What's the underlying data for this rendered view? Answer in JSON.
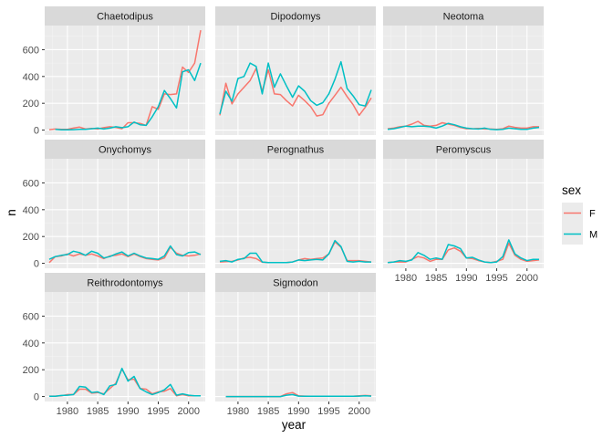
{
  "chart_data": {
    "type": "line",
    "xlabel": "year",
    "ylabel": "n",
    "xlim": [
      1976.25,
      2002.75
    ],
    "ylim": [
      -37,
      780
    ],
    "x_ticks": [
      1980,
      1985,
      1990,
      1995,
      2000
    ],
    "y_ticks": [
      0,
      200,
      400,
      600
    ],
    "grid": true,
    "legend": {
      "title": "sex",
      "position": "right",
      "entries": [
        {
          "label": "F",
          "color": "#F8766D"
        },
        {
          "label": "M",
          "color": "#00BFC4"
        }
      ]
    },
    "panels": [
      {
        "title": "Chaetodipus",
        "series": [
          {
            "name": "F",
            "x": [
              1977,
              1978,
              1979,
              1980,
              1981,
              1982,
              1983,
              1984,
              1985,
              1986,
              1987,
              1988,
              1989,
              1990,
              1991,
              1992,
              1993,
              1994,
              1995,
              1996,
              1997,
              1998,
              1999,
              2000,
              2001,
              2002
            ],
            "y": [
              3,
              8,
              6,
              6,
              15,
              22,
              8,
              12,
              8,
              18,
              25,
              20,
              10,
              55,
              55,
              50,
              35,
              175,
              155,
              270,
              265,
              270,
              470,
              430,
              500,
              745
            ]
          },
          {
            "name": "M",
            "x": [
              1978,
              1979,
              1980,
              1981,
              1982,
              1983,
              1984,
              1985,
              1986,
              1987,
              1988,
              1989,
              1990,
              1991,
              1992,
              1993,
              1994,
              1995,
              1996,
              1997,
              1998,
              1999,
              2000,
              2001,
              2002
            ],
            "y": [
              5,
              2,
              2,
              3,
              5,
              5,
              10,
              15,
              8,
              15,
              25,
              18,
              25,
              60,
              40,
              35,
              100,
              175,
              295,
              235,
              165,
              435,
              450,
              370,
              500
            ]
          }
        ]
      },
      {
        "title": "Dipodomys",
        "series": [
          {
            "name": "F",
            "x": [
              1977,
              1978,
              1979,
              1980,
              1981,
              1982,
              1983,
              1984,
              1985,
              1986,
              1987,
              1988,
              1989,
              1990,
              1991,
              1992,
              1993,
              1994,
              1995,
              1996,
              1997,
              1998,
              1999,
              2000,
              2001,
              2002
            ],
            "y": [
              110,
              350,
              195,
              270,
              320,
              370,
              460,
              290,
              450,
              270,
              265,
              220,
              180,
              260,
              220,
              175,
              105,
              115,
              200,
              260,
              320,
              250,
              190,
              110,
              170,
              240
            ]
          },
          {
            "name": "M",
            "x": [
              1977,
              1978,
              1979,
              1980,
              1981,
              1982,
              1983,
              1984,
              1985,
              1986,
              1987,
              1988,
              1989,
              1990,
              1991,
              1992,
              1993,
              1994,
              1995,
              1996,
              1997,
              1998,
              1999,
              2000,
              2001,
              2002
            ],
            "y": [
              120,
              290,
              215,
              385,
              400,
              500,
              475,
              270,
              500,
              320,
              420,
              330,
              245,
              330,
              290,
              220,
              185,
              205,
              270,
              380,
              510,
              310,
              255,
              190,
              180,
              300
            ]
          }
        ]
      },
      {
        "title": "Neotoma",
        "series": [
          {
            "name": "F",
            "x": [
              1977,
              1978,
              1979,
              1980,
              1981,
              1982,
              1983,
              1984,
              1985,
              1986,
              1987,
              1988,
              1989,
              1990,
              1991,
              1992,
              1993,
              1994,
              1995,
              1996,
              1997,
              1998,
              1999,
              2000,
              2001,
              2002
            ],
            "y": [
              10,
              15,
              25,
              30,
              45,
              65,
              35,
              30,
              35,
              55,
              45,
              35,
              20,
              10,
              10,
              12,
              8,
              8,
              5,
              10,
              30,
              20,
              15,
              15,
              25,
              25
            ]
          },
          {
            "name": "M",
            "x": [
              1977,
              1978,
              1979,
              1980,
              1981,
              1982,
              1983,
              1984,
              1985,
              1986,
              1987,
              1988,
              1989,
              1990,
              1991,
              1992,
              1993,
              1994,
              1995,
              1996,
              1997,
              1998,
              1999,
              2000,
              2001,
              2002
            ],
            "y": [
              5,
              10,
              20,
              30,
              25,
              30,
              30,
              25,
              15,
              30,
              50,
              40,
              25,
              15,
              10,
              8,
              15,
              5,
              3,
              5,
              15,
              10,
              5,
              5,
              15,
              20
            ]
          }
        ]
      },
      {
        "title": "Onychomys",
        "series": [
          {
            "name": "F",
            "x": [
              1977,
              1978,
              1979,
              1980,
              1981,
              1982,
              1983,
              1984,
              1985,
              1986,
              1987,
              1988,
              1989,
              1990,
              1991,
              1992,
              1993,
              1994,
              1995,
              1996,
              1997,
              1998,
              1999,
              2000,
              2001,
              2002
            ],
            "y": [
              5,
              50,
              55,
              70,
              55,
              70,
              60,
              70,
              55,
              35,
              55,
              60,
              70,
              50,
              70,
              50,
              35,
              30,
              25,
              40,
              120,
              75,
              60,
              55,
              60,
              70
            ]
          },
          {
            "name": "M",
            "x": [
              1977,
              1978,
              1979,
              1980,
              1981,
              1982,
              1983,
              1984,
              1985,
              1986,
              1987,
              1988,
              1989,
              1990,
              1991,
              1992,
              1993,
              1994,
              1995,
              1996,
              1997,
              1998,
              1999,
              2000,
              2001,
              2002
            ],
            "y": [
              30,
              50,
              60,
              65,
              90,
              80,
              60,
              90,
              75,
              40,
              50,
              70,
              85,
              55,
              75,
              55,
              40,
              35,
              30,
              55,
              130,
              65,
              55,
              80,
              85,
              65
            ]
          }
        ]
      },
      {
        "title": "Perognathus",
        "series": [
          {
            "name": "F",
            "x": [
              1977,
              1978,
              1979,
              1980,
              1981,
              1982,
              1983,
              1984,
              1985,
              1986,
              1987,
              1988,
              1989,
              1990,
              1991,
              1992,
              1993,
              1994,
              1995,
              1996,
              1997,
              1998,
              1999,
              2000,
              2001,
              2002
            ],
            "y": [
              10,
              12,
              15,
              25,
              40,
              45,
              35,
              8,
              5,
              5,
              5,
              5,
              10,
              25,
              35,
              30,
              35,
              40,
              70,
              160,
              120,
              20,
              20,
              20,
              15,
              10
            ]
          },
          {
            "name": "M",
            "x": [
              1977,
              1978,
              1979,
              1980,
              1981,
              1982,
              1983,
              1984,
              1985,
              1986,
              1987,
              1988,
              1989,
              1990,
              1991,
              1992,
              1993,
              1994,
              1995,
              1996,
              1997,
              1998,
              1999,
              2000,
              2001,
              2002
            ],
            "y": [
              15,
              20,
              10,
              30,
              35,
              75,
              75,
              10,
              5,
              5,
              5,
              5,
              10,
              25,
              20,
              25,
              30,
              25,
              70,
              170,
              125,
              15,
              10,
              15,
              10,
              10
            ]
          }
        ]
      },
      {
        "title": "Peromyscus",
        "series": [
          {
            "name": "F",
            "x": [
              1977,
              1978,
              1979,
              1980,
              1981,
              1982,
              1983,
              1984,
              1985,
              1986,
              1987,
              1988,
              1989,
              1990,
              1991,
              1992,
              1993,
              1994,
              1995,
              1996,
              1997,
              1998,
              1999,
              2000,
              2001,
              2002
            ],
            "y": [
              5,
              10,
              10,
              10,
              30,
              50,
              40,
              15,
              30,
              30,
              100,
              115,
              90,
              40,
              35,
              20,
              10,
              5,
              15,
              30,
              150,
              60,
              30,
              15,
              20,
              25
            ]
          },
          {
            "name": "M",
            "x": [
              1977,
              1978,
              1979,
              1980,
              1981,
              1982,
              1983,
              1984,
              1985,
              1986,
              1987,
              1988,
              1989,
              1990,
              1991,
              1992,
              1993,
              1994,
              1995,
              1996,
              1997,
              1998,
              1999,
              2000,
              2001,
              2002
            ],
            "y": [
              5,
              10,
              20,
              15,
              25,
              80,
              60,
              30,
              40,
              30,
              140,
              130,
              110,
              40,
              45,
              25,
              10,
              5,
              10,
              50,
              175,
              70,
              40,
              20,
              30,
              30
            ]
          }
        ]
      },
      {
        "title": "Reithrodontomys",
        "series": [
          {
            "name": "F",
            "x": [
              1977,
              1978,
              1979,
              1980,
              1981,
              1982,
              1983,
              1984,
              1985,
              1986,
              1987,
              1988,
              1989,
              1990,
              1991,
              1992,
              1993,
              1994,
              1995,
              1996,
              1997,
              1998,
              1999,
              2000,
              2001,
              2002
            ],
            "y": [
              3,
              3,
              5,
              15,
              15,
              55,
              55,
              25,
              30,
              20,
              60,
              100,
              205,
              125,
              130,
              60,
              55,
              20,
              35,
              40,
              60,
              5,
              15,
              5,
              5,
              5
            ]
          },
          {
            "name": "M",
            "x": [
              1977,
              1978,
              1979,
              1980,
              1981,
              1982,
              1983,
              1984,
              1985,
              1986,
              1987,
              1988,
              1989,
              1990,
              1991,
              1992,
              1993,
              1994,
              1995,
              1996,
              1997,
              1998,
              1999,
              2000,
              2001,
              2002
            ],
            "y": [
              2,
              2,
              8,
              10,
              15,
              75,
              70,
              30,
              35,
              15,
              80,
              90,
              210,
              115,
              150,
              60,
              35,
              15,
              30,
              50,
              90,
              10,
              20,
              10,
              5,
              5
            ]
          }
        ]
      },
      {
        "title": "Sigmodon",
        "series": [
          {
            "name": "F",
            "x": [
              1978,
              1979,
              1980,
              1981,
              1982,
              1983,
              1984,
              1985,
              1986,
              1987,
              1988,
              1989,
              1990,
              1991,
              1992,
              1993,
              1994,
              1995,
              1996,
              1997,
              1998,
              1999,
              2000,
              2001,
              2002
            ],
            "y": [
              0,
              0,
              0,
              0,
              0,
              0,
              0,
              0,
              0,
              0,
              20,
              30,
              5,
              3,
              2,
              2,
              2,
              2,
              2,
              2,
              2,
              2,
              5,
              8,
              5
            ]
          },
          {
            "name": "M",
            "x": [
              1978,
              1979,
              1980,
              1981,
              1982,
              1983,
              1984,
              1985,
              1986,
              1987,
              1988,
              1989,
              1990,
              1991,
              1992,
              1993,
              1994,
              1995,
              1996,
              1997,
              1998,
              1999,
              2000,
              2001,
              2002
            ],
            "y": [
              0,
              0,
              0,
              0,
              0,
              0,
              0,
              0,
              0,
              0,
              10,
              15,
              3,
              2,
              2,
              2,
              2,
              2,
              2,
              2,
              2,
              2,
              3,
              5,
              3
            ]
          }
        ]
      }
    ]
  }
}
